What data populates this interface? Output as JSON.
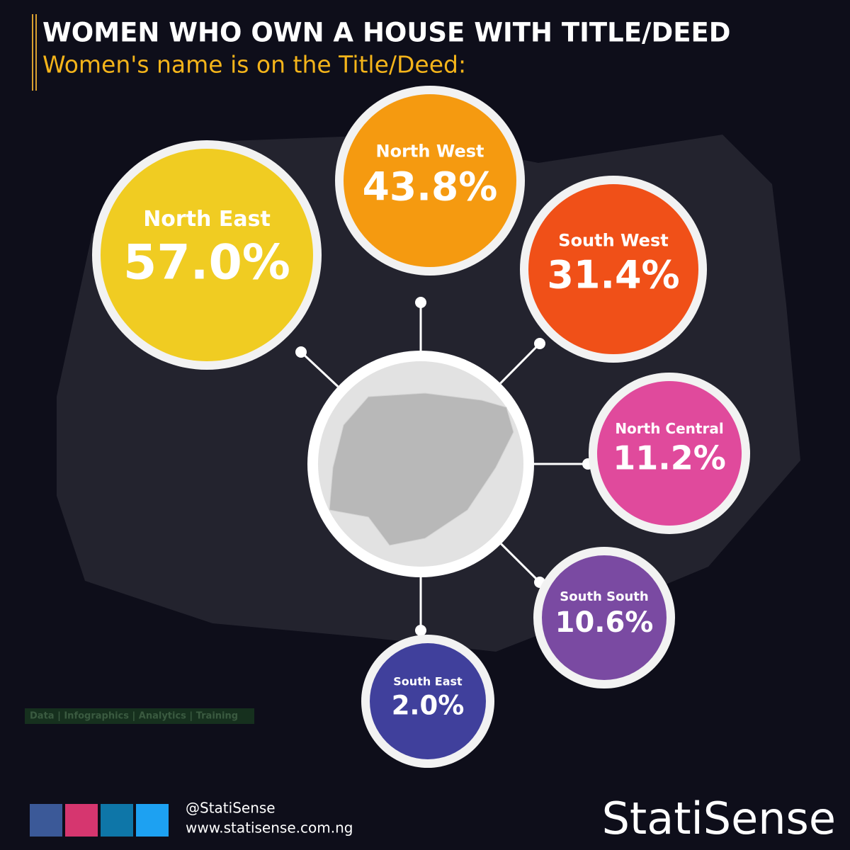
{
  "chart_data": {
    "type": "bubble",
    "title": "WOMEN WHO OWN A HOUSE WITH TITLE/DEED",
    "subtitle": "Women's name is on the Title/Deed:",
    "categories": [
      "North East",
      "North West",
      "South West",
      "North Central",
      "South South",
      "South East"
    ],
    "values": [
      57.0,
      43.8,
      31.4,
      11.2,
      10.6,
      2.0
    ],
    "value_labels": [
      "57.0%",
      "43.8%",
      "31.4%",
      "11.2%",
      "10.6%",
      "2.0%"
    ],
    "colors": [
      "#f0cc22",
      "#f59a10",
      "#f05018",
      "#e04a9c",
      "#7a4aa2",
      "#40409c"
    ]
  },
  "footer": {
    "tagline": "Data | Infographics | Analytics | Training",
    "handle": "@StatiSense",
    "website": "www.statisense.com.ng",
    "brand": "StatiSense"
  }
}
